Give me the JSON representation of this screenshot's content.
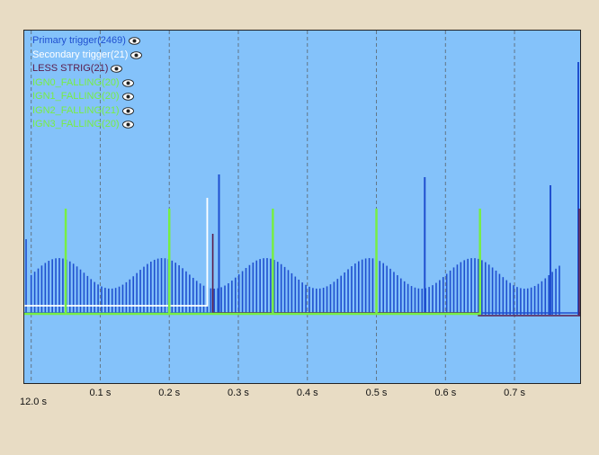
{
  "chart_data": {
    "type": "line",
    "x_origin_label": "12.0 s",
    "x_ticks": [
      {
        "x": 0.1,
        "label": "0.1 s"
      },
      {
        "x": 0.2,
        "label": "0.2 s"
      },
      {
        "x": 0.3,
        "label": "0.3 s"
      },
      {
        "x": 0.4,
        "label": "0.4 s"
      },
      {
        "x": 0.5,
        "label": "0.5 s"
      },
      {
        "x": 0.6,
        "label": "0.6 s"
      },
      {
        "x": 0.7,
        "label": "0.7 s"
      }
    ],
    "xlim": [
      -0.01,
      0.795
    ],
    "ylim": [
      0,
      1
    ],
    "grid": "vertical dashed",
    "legend_position": "top-left",
    "series": [
      {
        "name": "Primary trigger(2469)",
        "color": "#1f4fcf"
      },
      {
        "name": "Secondary trigger(21)",
        "color": "#ffffff"
      },
      {
        "name": "LESS STRIG(21)",
        "color": "#5a1a4a"
      },
      {
        "name": "IGN0_FALLING(20)",
        "color": "#77ee44"
      },
      {
        "name": "IGN1_FALLING(20)",
        "color": "#77ee44"
      },
      {
        "name": "IGN2_FALLING(21)",
        "color": "#77ee44"
      },
      {
        "name": "IGN3_FALLING(20)",
        "color": "#77ee44"
      }
    ],
    "primary_trigger_tall_spikes": [
      0.272,
      0.57,
      0.752
    ],
    "secondary_trigger_rise_x": 0.255,
    "less_strig_edges": [
      0.263,
      0.648
    ],
    "ign_falling_x": [
      0.05,
      0.2,
      0.35,
      0.5,
      0.65
    ]
  }
}
